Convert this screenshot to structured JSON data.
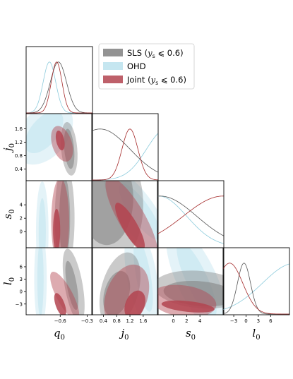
{
  "chart_data": {
    "type": "corner",
    "parameters": [
      {
        "key": "q0",
        "base": "q",
        "sub": "0",
        "range": [
          -0.98,
          -0.24
        ],
        "ticks": [
          -0.6,
          -0.3
        ],
        "tick_labels": [
          "−0.6",
          "−0.3"
        ]
      },
      {
        "key": "j0",
        "base": "j",
        "sub": "0",
        "range": [
          0.05,
          2.05
        ],
        "ticks": [
          0.4,
          0.8,
          1.2,
          1.6
        ],
        "tick_labels": [
          "0.4",
          "0.8",
          "1.2",
          "1.6"
        ]
      },
      {
        "key": "s0",
        "base": "s",
        "sub": "0",
        "range": [
          -2.4,
          7.6
        ],
        "ticks": [
          0,
          2,
          4
        ],
        "tick_labels": [
          "0",
          "2",
          "4"
        ]
      },
      {
        "key": "l0",
        "base": "l",
        "sub": "0",
        "range": [
          -5.6,
          10.6
        ],
        "ticks": [
          -3,
          0,
          3,
          6
        ],
        "tick_labels": [
          "−3",
          "0",
          "3",
          "6"
        ]
      }
    ],
    "series": [
      {
        "name": "SLS ($y_s \\leqslant 0.6$)",
        "label_text": "SLS (",
        "label_var": "y",
        "label_sub": "s",
        "label_rel": " ⩽ 0.6)",
        "color": "#7f7f7f",
        "fill": "#808080",
        "line": "#555555"
      },
      {
        "name": "OHD",
        "label_text": "OHD",
        "label_var": "",
        "label_sub": "",
        "label_rel": "",
        "color": "#add8e6",
        "fill": "#bfe3ee",
        "line": "#8ccbdc"
      },
      {
        "name": "Joint ($y_s \\leqslant 0.6$)",
        "label_text": "Joint (",
        "label_var": "y",
        "label_sub": "s",
        "label_rel": " ⩽ 0.6)",
        "color": "#b84b52",
        "fill": "#b34450",
        "line": "#a52a2a"
      }
    ],
    "marginals": {
      "q0": {
        "sls": {
          "mean": -0.62,
          "sd": 0.09
        },
        "ohd": {
          "mean": -0.72,
          "sd": 0.07
        },
        "joint": {
          "mean": -0.64,
          "sd": 0.06
        }
      },
      "j0": {
        "sls": {
          "mean": 0.3,
          "sd": 0.9,
          "decreasing": true
        },
        "ohd": {
          "mean": 2.3,
          "sd": 0.6
        },
        "joint": {
          "mean": 1.2,
          "sd": 0.24
        }
      },
      "s0": {
        "sls": {
          "mean": -2.0,
          "sd": 5.5
        },
        "ohd": {
          "mean": -2.2,
          "sd": 4.2
        },
        "joint": {
          "mean": 7.5,
          "sd": 6.0
        }
      },
      "l0": {
        "sls": {
          "mean": -0.5,
          "sd": 1.6
        },
        "ohd": {
          "mean": 12.0,
          "sd": 8.0
        },
        "joint": {
          "mean": -4.0,
          "sd": 3.2
        }
      }
    },
    "contours": {
      "j0_q0": {
        "sls": [
          {
            "cx": -0.5,
            "cy": 1.0,
            "rx": 0.09,
            "ry": 0.8,
            "rot": 5
          },
          {
            "cx": -0.5,
            "cy": 1.0,
            "rx": 0.055,
            "ry": 0.6,
            "rot": 5
          }
        ],
        "ohd": [
          {
            "cx": -0.78,
            "cy": 1.45,
            "rx": 0.26,
            "ry": 1.05,
            "rot": -40
          },
          {
            "cx": -0.78,
            "cy": 1.5,
            "rx": 0.15,
            "ry": 0.75,
            "rot": -40
          }
        ],
        "joint": [
          {
            "cx": -0.58,
            "cy": 1.15,
            "rx": 0.11,
            "ry": 0.55,
            "rot": 18
          },
          {
            "cx": -0.6,
            "cy": 1.25,
            "rx": 0.045,
            "ry": 0.3,
            "rot": 12
          }
        ]
      },
      "s0_q0": {
        "sls": [
          {
            "cx": -0.55,
            "cy": 2.0,
            "rx": 0.11,
            "ry": 8.0,
            "rot": 0
          },
          {
            "cx": -0.55,
            "cy": 2.0,
            "rx": 0.06,
            "ry": 6.0,
            "rot": 0
          }
        ],
        "ohd": [
          {
            "cx": -0.8,
            "cy": 0.0,
            "rx": 0.07,
            "ry": 7.5,
            "rot": 0
          },
          {
            "cx": -0.8,
            "cy": 0.0,
            "rx": 0.04,
            "ry": 5.0,
            "rot": 0
          }
        ],
        "joint": [
          {
            "cx": -0.6,
            "cy": 1.5,
            "rx": 0.1,
            "ry": 6.5,
            "rot": 0
          },
          {
            "cx": -0.64,
            "cy": 0.2,
            "rx": 0.04,
            "ry": 3.2,
            "rot": 0
          }
        ]
      },
      "s0_j0": {
        "sls": [
          {
            "cx": 0.6,
            "cy": 4.0,
            "rx": 1.0,
            "ry": 9.0,
            "rot": 0
          },
          {
            "cx": 0.5,
            "cy": 5.0,
            "rx": 0.8,
            "ry": 7.0,
            "rot": 0
          }
        ],
        "ohd": [
          {
            "cx": 1.4,
            "cy": 3.0,
            "rx": 0.55,
            "ry": 7.5,
            "rot": 35
          },
          {
            "cx": 1.5,
            "cy": 3.0,
            "rx": 0.3,
            "ry": 5.0,
            "rot": 35
          }
        ],
        "joint": [
          {
            "cx": 1.25,
            "cy": 2.0,
            "rx": 0.4,
            "ry": 7.0,
            "rot": 30
          },
          {
            "cx": 1.2,
            "cy": 0.8,
            "rx": 0.22,
            "ry": 4.0,
            "rot": 30
          }
        ]
      },
      "l0_q0": {
        "sls": [
          {
            "cx": -0.45,
            "cy": 1.5,
            "rx": 0.1,
            "ry": 9.0,
            "rot": 10
          },
          {
            "cx": -0.47,
            "cy": 1.5,
            "rx": 0.055,
            "ry": 6.0,
            "rot": 10
          }
        ],
        "ohd": [
          {
            "cx": -0.82,
            "cy": 3.0,
            "rx": 0.07,
            "ry": 12.0,
            "rot": 0
          },
          {
            "cx": -0.82,
            "cy": 3.0,
            "rx": 0.035,
            "ry": 9.0,
            "rot": 0
          }
        ],
        "joint": [
          {
            "cx": -0.55,
            "cy": -1.0,
            "rx": 0.09,
            "ry": 6.5,
            "rot": 28
          },
          {
            "cx": -0.6,
            "cy": -3.2,
            "rx": 0.05,
            "ry": 3.0,
            "rot": 20
          }
        ]
      },
      "l0_j0": {
        "sls": [
          {
            "cx": 0.9,
            "cy": 0.5,
            "rx": 1.15,
            "ry": 4.5,
            "rot": 75
          },
          {
            "cx": 0.8,
            "cy": -0.5,
            "rx": 0.7,
            "ry": 3.0,
            "rot": 75
          }
        ],
        "ohd": [
          {
            "cx": 1.55,
            "cy": 4.0,
            "rx": 0.45,
            "ry": 12.0,
            "rot": 10
          },
          {
            "cx": 1.6,
            "cy": 4.0,
            "rx": 0.22,
            "ry": 9.0,
            "rot": 10
          }
        ],
        "joint": [
          {
            "cx": 1.1,
            "cy": -1.2,
            "rx": 1.0,
            "ry": 5.0,
            "rot": 70
          },
          {
            "cx": 1.35,
            "cy": -3.2,
            "rx": 0.45,
            "ry": 2.3,
            "rot": 68
          }
        ]
      },
      "l0_s0": {
        "sls": [
          {
            "cx": 4.0,
            "cy": 0.5,
            "rx": 7.0,
            "ry": 4.5,
            "rot": -5
          },
          {
            "cx": 4.0,
            "cy": -0.5,
            "rx": 5.5,
            "ry": 3.0,
            "rot": -5
          }
        ],
        "ohd": [
          {
            "cx": 3.5,
            "cy": 3.0,
            "rx": 3.0,
            "ry": 14.0,
            "rot": 25
          },
          {
            "cx": 3.5,
            "cy": 3.0,
            "rx": 1.6,
            "ry": 10.0,
            "rot": 25
          }
        ],
        "joint": [
          {
            "cx": 1.5,
            "cy": -2.3,
            "rx": 5.0,
            "ry": 3.8,
            "rot": -8
          },
          {
            "cx": 2.2,
            "cy": -3.6,
            "rx": 4.0,
            "ry": 1.3,
            "rot": -6
          }
        ]
      }
    },
    "legend_position": "top-right"
  }
}
